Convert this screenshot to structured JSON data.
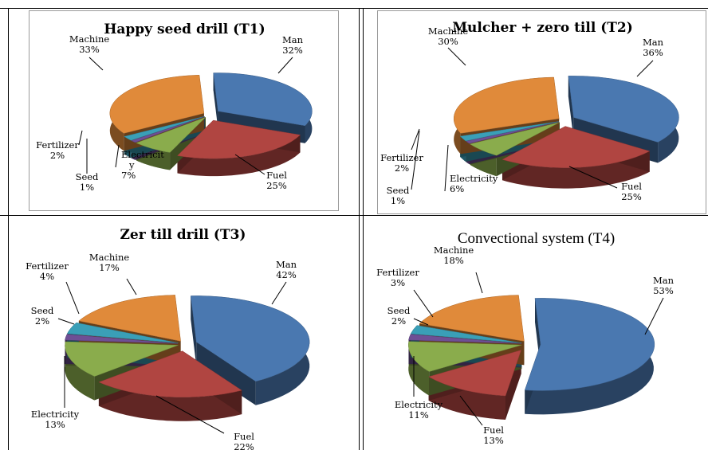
{
  "colors": {
    "Man": "#4a78b0",
    "Fuel": "#b04541",
    "Electricity": "#8aac4c",
    "Seed": "#6e4f95",
    "Fertilizer": "#3a9fb7",
    "Machine": "#e08a3a"
  },
  "chart_data": [
    {
      "type": "pie",
      "title": "Happy seed drill (T1)",
      "slices": [
        {
          "label": "Man",
          "value": 32,
          "value_text": "32%"
        },
        {
          "label": "Fuel",
          "value": 25,
          "value_text": "25%"
        },
        {
          "label": "Electricity",
          "label_display": "Electricit y",
          "value": 7,
          "value_text": "7%"
        },
        {
          "label": "Seed",
          "value": 1,
          "value_text": "1%"
        },
        {
          "label": "Fertilizer",
          "value": 2,
          "value_text": "2%"
        },
        {
          "label": "Machine",
          "value": 33,
          "value_text": "33%"
        }
      ]
    },
    {
      "type": "pie",
      "title": "Mulcher + zero till (T2)",
      "slices": [
        {
          "label": "Man",
          "value": 36,
          "value_text": "36%"
        },
        {
          "label": "Fuel",
          "value": 25,
          "value_text": "25%"
        },
        {
          "label": "Electricity",
          "value": 6,
          "value_text": "6%"
        },
        {
          "label": "Seed",
          "value": 1,
          "value_text": "1%"
        },
        {
          "label": "Fertilizer",
          "value": 2,
          "value_text": "2%"
        },
        {
          "label": "Machine",
          "value": 30,
          "value_text": "30%"
        }
      ]
    },
    {
      "type": "pie",
      "title": "Zer till drill (T3)",
      "slices": [
        {
          "label": "Man",
          "value": 42,
          "value_text": "42%"
        },
        {
          "label": "Fuel",
          "value": 22,
          "value_text": "22%"
        },
        {
          "label": "Electricity",
          "value": 13,
          "value_text": "13%"
        },
        {
          "label": "Seed",
          "value": 2,
          "value_text": "2%"
        },
        {
          "label": "Fertilizer",
          "value": 4,
          "value_text": "4%"
        },
        {
          "label": "Machine",
          "value": 17,
          "value_text": "17%"
        }
      ]
    },
    {
      "type": "pie",
      "title": "Convectional system (T4)",
      "slices": [
        {
          "label": "Man",
          "value": 53,
          "value_text": "53%"
        },
        {
          "label": "Fuel",
          "value": 13,
          "value_text": "13%"
        },
        {
          "label": "Electricity",
          "value": 11,
          "value_text": "11%"
        },
        {
          "label": "Seed",
          "value": 2,
          "value_text": "2%"
        },
        {
          "label": "Fertilizer",
          "value": 3,
          "value_text": "3%"
        },
        {
          "label": "Machine",
          "value": 18,
          "value_text": "18%"
        }
      ]
    }
  ]
}
